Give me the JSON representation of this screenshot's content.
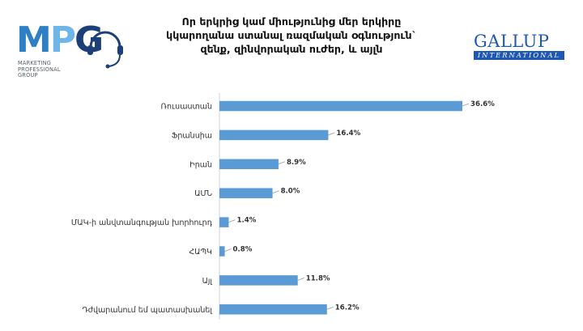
{
  "header": {
    "title_lines": [
      "Որ երկրից կամ միությունից մեր երկիրը",
      "կկարողանա ստանալ ռազմական օգնություն`",
      "զենք, զինվորական ուժեր, և այլն"
    ]
  },
  "logos": {
    "mpg": {
      "letters": "MPG",
      "subtitle_lines": [
        "MARKETING",
        "PROFESSIONAL",
        "GROUP"
      ]
    },
    "gallup": {
      "name": "GALLUP",
      "tagline": "INTERNATIONAL"
    }
  },
  "colors": {
    "bar": "#5b9bd5",
    "leader": "#9a9a9a",
    "gallup": "#1f58b3"
  },
  "chart_data": {
    "type": "bar",
    "orientation": "horizontal",
    "categories": [
      "Ռուսաստան",
      "Ֆրանսիա",
      "Իրան",
      "ԱՄՆ",
      "ՄԱԿ-ի անվտանգության խորհուրդ",
      "ՀԱՊԿ",
      "Այլ",
      "Դժվարանում եմ պատասխանել"
    ],
    "values": [
      36.6,
      16.4,
      8.9,
      8.0,
      1.4,
      0.8,
      11.8,
      16.2
    ],
    "value_labels": [
      "36.6%",
      "16.4%",
      "8.9%",
      "8.0%",
      "1.4%",
      "0.8%",
      "11.8%",
      "16.2%"
    ],
    "xlim": [
      0,
      36.6
    ],
    "grid": false,
    "legend": "none"
  }
}
